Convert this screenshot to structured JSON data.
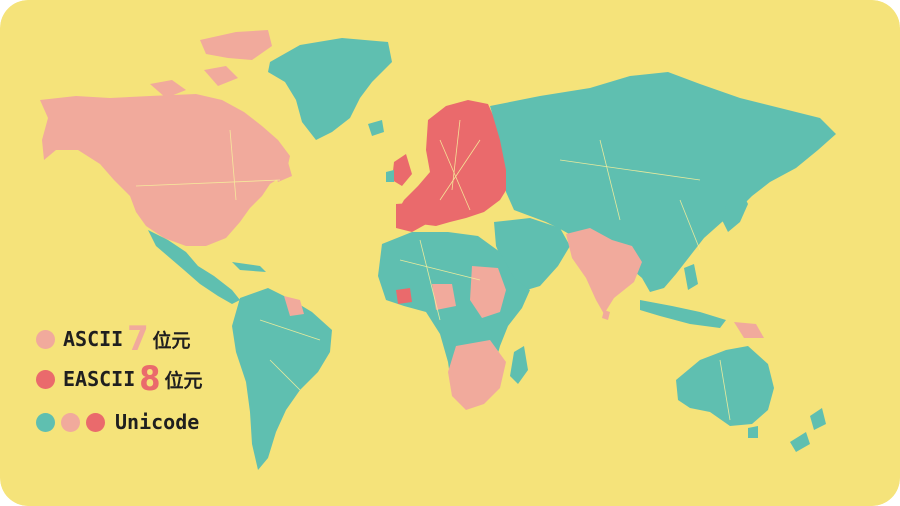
{
  "colors": {
    "background": "#f5e37a",
    "ocean": "#f5e37a",
    "ascii": "#f1aa9c",
    "eascii": "#ea6a6c",
    "unicode": "#5fbfb0",
    "border_lines": "#f7ef9c"
  },
  "legend": {
    "ascii": {
      "name": "ASCII",
      "bits": "7",
      "unit": "位元"
    },
    "eascii": {
      "name": "EASCII",
      "bits": "8",
      "unit": "位元"
    },
    "unicode": {
      "name": "Unicode"
    }
  },
  "regions": [
    {
      "name": "north-america",
      "category": "ascii"
    },
    {
      "name": "greenland",
      "category": "unicode"
    },
    {
      "name": "central-america",
      "category": "unicode"
    },
    {
      "name": "south-america",
      "category": "unicode"
    },
    {
      "name": "europe",
      "category": "eascii"
    },
    {
      "name": "russia-asia",
      "category": "unicode"
    },
    {
      "name": "middle-east",
      "category": "unicode"
    },
    {
      "name": "india",
      "category": "ascii"
    },
    {
      "name": "africa",
      "category": "unicode"
    },
    {
      "name": "southern-africa",
      "category": "ascii"
    },
    {
      "name": "australia",
      "category": "unicode"
    },
    {
      "name": "new-zealand",
      "category": "unicode"
    }
  ]
}
